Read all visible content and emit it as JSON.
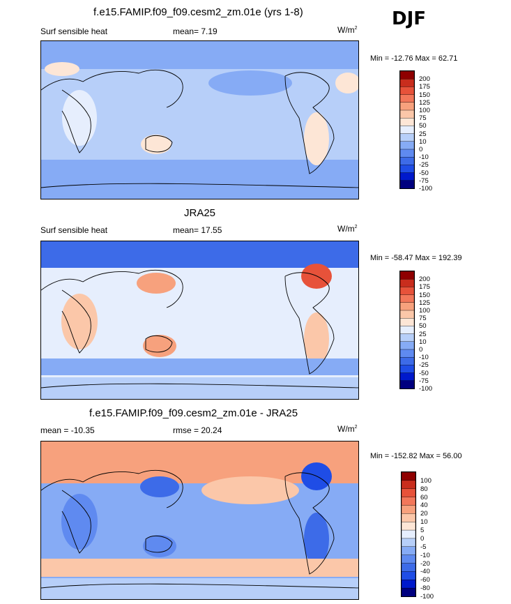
{
  "season": "DJF",
  "colors": {
    "scale_main": [
      "#00007f",
      "#0019cc",
      "#1f4de6",
      "#3d6be8",
      "#5f8af0",
      "#86abf5",
      "#b7cff9",
      "#e6eefd",
      "#fde6d6",
      "#fbc7a9",
      "#f7a17d",
      "#f2775a",
      "#e7523a",
      "#c92d1d",
      "#8f0000"
    ],
    "scale_diff": [
      "#00007f",
      "#0019cc",
      "#1f4de6",
      "#3d6be8",
      "#5f8af0",
      "#86abf5",
      "#b7cff9",
      "#e6eefd",
      "#fde6d6",
      "#fbc7a9",
      "#f7a17d",
      "#f2775a",
      "#e7523a",
      "#c92d1d",
      "#8f0000"
    ]
  },
  "chart_data": [
    {
      "type": "heatmap",
      "title": "f.e15.FAMIP.f09_f09.cesm2_zm.01e (yrs 1-8)",
      "variable": "Surf sensible heat",
      "stat_text": "mean=  7.19",
      "units": "W/m",
      "units_exp": "2",
      "minmax": "Min = -12.76 Max =  62.71",
      "min": -12.76,
      "max": 62.71,
      "mean": 7.19,
      "colorbar_levels": [
        "200",
        "175",
        "150",
        "125",
        "100",
        "75",
        "50",
        "25",
        "10",
        "0",
        "-10",
        "-25",
        "-50",
        "-75",
        "-100"
      ]
    },
    {
      "type": "heatmap",
      "title": "JRA25",
      "variable": "Surf sensible heat",
      "stat_text": "mean=  17.55",
      "units": "W/m",
      "units_exp": "2",
      "minmax": "Min = -58.47 Max = 192.39",
      "min": -58.47,
      "max": 192.39,
      "mean": 17.55,
      "colorbar_levels": [
        "200",
        "175",
        "150",
        "125",
        "100",
        "75",
        "50",
        "25",
        "10",
        "0",
        "-10",
        "-25",
        "-50",
        "-75",
        "-100"
      ]
    },
    {
      "type": "heatmap",
      "title": "f.e15.FAMIP.f09_f09.cesm2_zm.01e - JRA25",
      "stat_text": "mean = -10.35",
      "rmse_text": "rmse =  20.24",
      "units": "W/m",
      "units_exp": "2",
      "minmax": "Min = -152.82 Max =  56.00",
      "min": -152.82,
      "max": 56.0,
      "mean": -10.35,
      "rmse": 20.24,
      "colorbar_levels": [
        "100",
        "80",
        "60",
        "40",
        "20",
        "10",
        "5",
        "0",
        "-5",
        "-10",
        "-20",
        "-40",
        "-60",
        "-80",
        "-100"
      ]
    }
  ]
}
